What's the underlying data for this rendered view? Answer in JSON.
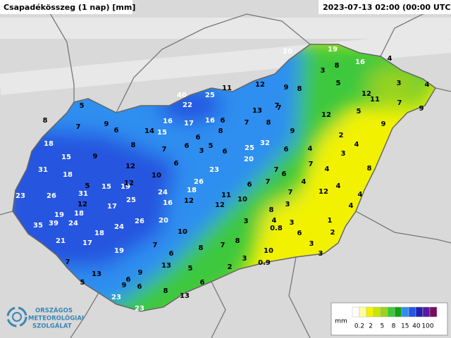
{
  "header": {
    "title": "Csapadékösszeg (1 nap) [mm]",
    "timestamp": "2023-07-13 02:00 (00:00 UTC)"
  },
  "stations": [
    20,
    19,
    16,
    3,
    8,
    4,
    3,
    4,
    5,
    12,
    11,
    7,
    9,
    11,
    12,
    9,
    8,
    7,
    40,
    25,
    22,
    13,
    7,
    12,
    5,
    16,
    17,
    16,
    6,
    7,
    8,
    9,
    5,
    8,
    7,
    9,
    6,
    14,
    15,
    8,
    9,
    2,
    4,
    18,
    8,
    7,
    6,
    6,
    3,
    5,
    6,
    25,
    32,
    6,
    4,
    3,
    15,
    9,
    20,
    7,
    4,
    8,
    31,
    12,
    6,
    23,
    7,
    18,
    10,
    7,
    6,
    4,
    4,
    5,
    15,
    19,
    12,
    26,
    6,
    12,
    23,
    26,
    31,
    24,
    18,
    11,
    7,
    4,
    12,
    25,
    16,
    12,
    12,
    10,
    17,
    8,
    3,
    4,
    19,
    18,
    24,
    26,
    20,
    4,
    35,
    39,
    24,
    18,
    3,
    1,
    0.8,
    3,
    6,
    21,
    17,
    10,
    8,
    2,
    7,
    8,
    7,
    3,
    19,
    6,
    10,
    3,
    7,
    13,
    5,
    2,
    3,
    0.9,
    13,
    9,
    6,
    9,
    6,
    5,
    8,
    6,
    13,
    23,
    23
  ],
  "legend": {
    "unit": "mm",
    "labels": [
      0.2,
      2,
      5,
      8,
      15,
      40,
      100
    ]
  },
  "logo": {
    "lines": [
      "ORSZÁGOS",
      "METEOROLÓGIAI",
      "SZOLGÁLAT"
    ]
  }
}
